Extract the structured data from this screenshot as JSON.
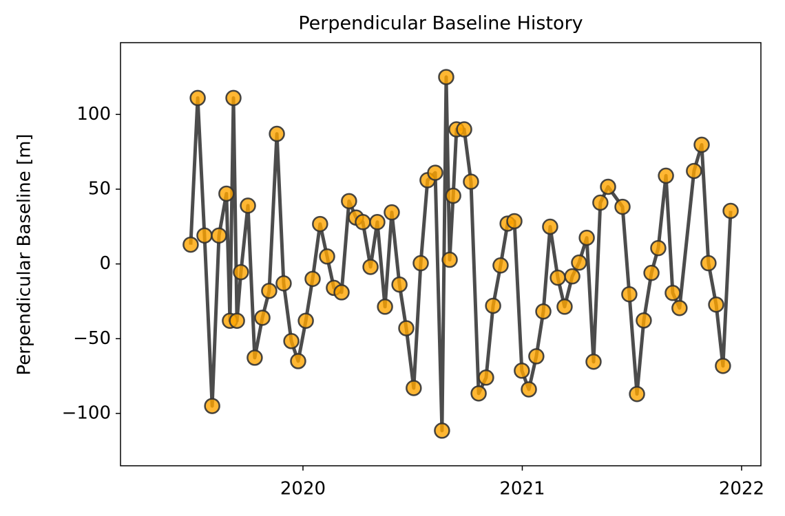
{
  "chart_data": {
    "type": "line",
    "title": "Perpendicular Baseline History",
    "ylabel": "Perpendicular Baseline [m]",
    "x": [
      2019.488,
      2019.52,
      2019.551,
      2019.586,
      2019.617,
      2019.651,
      2019.667,
      2019.683,
      2019.699,
      2019.717,
      2019.749,
      2019.78,
      2019.815,
      2019.846,
      2019.881,
      2019.912,
      2019.947,
      2019.978,
      2020.013,
      2020.044,
      2020.078,
      2020.11,
      2020.141,
      2020.176,
      2020.21,
      2020.242,
      2020.273,
      2020.308,
      2020.339,
      2020.374,
      2020.405,
      2020.44,
      2020.471,
      2020.505,
      2020.537,
      2020.568,
      2020.603,
      2020.634,
      2020.653,
      2020.669,
      2020.685,
      2020.7,
      2020.735,
      2020.766,
      2020.801,
      2020.835,
      2020.867,
      2020.901,
      2020.933,
      2020.964,
      2020.998,
      2021.03,
      2021.064,
      2021.096,
      2021.127,
      2021.162,
      2021.193,
      2021.228,
      2021.259,
      2021.294,
      2021.325,
      2021.356,
      2021.391,
      2021.457,
      2021.488,
      2021.523,
      2021.554,
      2021.589,
      2021.62,
      2021.655,
      2021.686,
      2021.717,
      2021.783,
      2021.818,
      2021.849,
      2021.884,
      2021.915,
      2021.95
    ],
    "values": [
      12.9,
      111,
      19,
      -95,
      19,
      47,
      -38,
      111,
      -38,
      -5.5,
      39,
      -62.7,
      -36,
      -18,
      87,
      -13,
      -51.6,
      -65,
      -38,
      -10,
      26.7,
      5,
      -16,
      -19,
      42,
      31,
      28,
      -2,
      28,
      -28.6,
      34.5,
      -13.8,
      -43,
      -83,
      0.5,
      56,
      61,
      -111.5,
      125,
      2.8,
      45.6,
      90,
      90,
      55,
      -86.6,
      -76,
      -28,
      -1,
      27,
      28.6,
      -71.4,
      -83.9,
      -61.8,
      -31.8,
      24.9,
      -9.2,
      -28.6,
      -8.3,
      0.9,
      17.5,
      -65.4,
      41,
      51.6,
      38.2,
      -20.3,
      -87,
      -37.8,
      -6,
      10.6,
      59,
      -19.4,
      -29.5,
      62.2,
      79.7,
      0.5,
      -27.2,
      -68.2,
      35.5
    ],
    "color": "#333333",
    "marker_color": "#ffa500",
    "xlim": [
      2019.168,
      2022.088
    ],
    "xticks": [
      2020,
      2021,
      2022
    ],
    "ylim": [
      -135,
      148
    ],
    "yticks": [
      {
        "value": -100,
        "label": "−100"
      },
      {
        "value": -50,
        "label": "−50"
      },
      0,
      50,
      100
    ],
    "grid": false
  }
}
